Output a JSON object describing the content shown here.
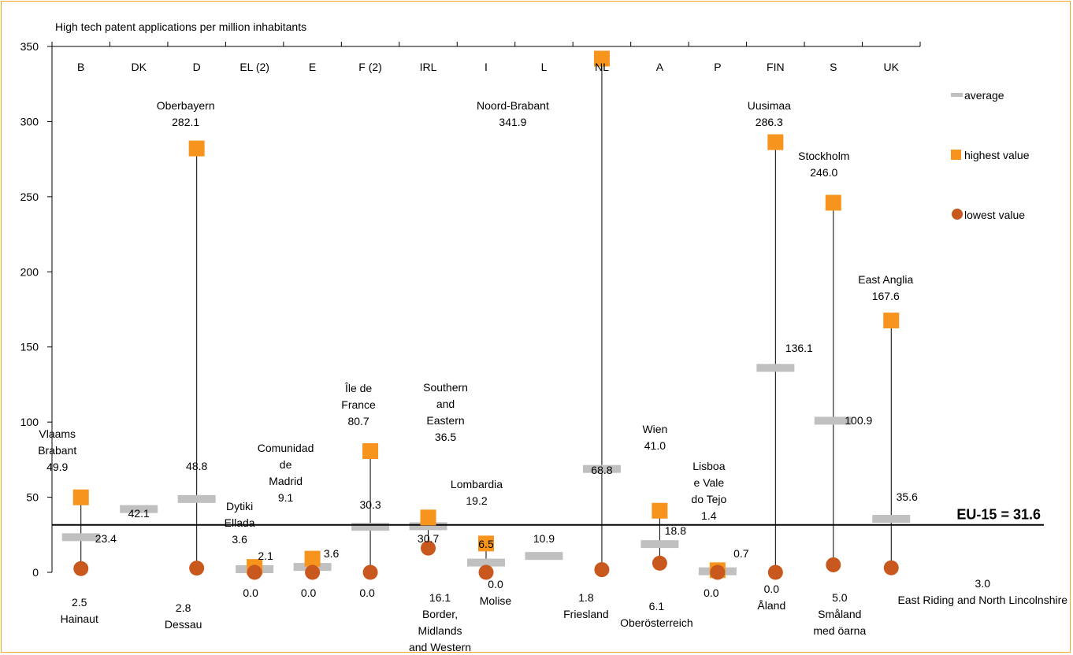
{
  "chart_data": {
    "type": "scatter",
    "title": "High tech patent applications per million inhabitants",
    "ylim": [
      0,
      350
    ],
    "y_ticks": [
      0,
      50,
      100,
      150,
      200,
      250,
      300,
      350
    ],
    "countries": [
      {
        "code": "B",
        "average": 23.4,
        "avg_label": "23.4",
        "high": 49.9,
        "high_label": "49.9",
        "high_region": [
          "Vlaams",
          "Brabant"
        ],
        "low": 2.5,
        "low_label": "2.5",
        "low_region": [
          "Hainaut"
        ]
      },
      {
        "code": "DK",
        "average": 42.1,
        "avg_label": "42.1"
      },
      {
        "code": "D",
        "average": 48.8,
        "avg_label": "48.8",
        "high": 282.1,
        "high_label": "282.1",
        "high_region": [
          "Oberbayern"
        ],
        "low": 2.8,
        "low_label": "2.8",
        "low_region": [
          "Dessau"
        ]
      },
      {
        "code": "EL (2)",
        "average": 2.1,
        "avg_label": "2.1",
        "high": 3.6,
        "high_label": "3.6",
        "high_region": [
          "Dytiki",
          "Ellada"
        ],
        "low": 0.0,
        "low_label": "0.0",
        "low_region": []
      },
      {
        "code": "E",
        "average": 3.6,
        "avg_label": "3.6",
        "high": 9.1,
        "high_label": "9.1",
        "high_region": [
          "Comunidad",
          "de",
          "Madrid"
        ],
        "low": 0.0,
        "low_label": "0.0",
        "low_region": []
      },
      {
        "code": "F (2)",
        "average": 30.3,
        "avg_label": "30.3",
        "high": 80.7,
        "high_label": "80.7",
        "high_region": [
          "Île de",
          "France"
        ],
        "low": 0.0,
        "low_label": "0.0",
        "low_region": []
      },
      {
        "code": "IRL",
        "average": 30.7,
        "avg_label": "30.7",
        "high": 36.5,
        "high_label": "36.5",
        "high_region": [
          "Southern",
          "and",
          "Eastern"
        ],
        "low": 16.1,
        "low_label": "16.1",
        "low_region": [
          "Border,",
          "Midlands",
          "and Western"
        ]
      },
      {
        "code": "I",
        "average": 6.5,
        "avg_label": "6.5",
        "high": 19.2,
        "high_label": "19.2",
        "high_region": [
          "Lombardia"
        ],
        "low": 0.0,
        "low_label": "0.0",
        "low_region": [
          "Molise"
        ]
      },
      {
        "code": "L",
        "average": 10.9,
        "avg_label": "10.9"
      },
      {
        "code": "NL",
        "average": 68.8,
        "avg_label": "68.8",
        "high": 341.9,
        "high_label": "341.9",
        "high_region": [
          "Noord-Brabant"
        ],
        "low": 1.8,
        "low_label": "1.8",
        "low_region": [
          "Friesland"
        ]
      },
      {
        "code": "A",
        "average": 18.8,
        "avg_label": "18.8",
        "high": 41.0,
        "high_label": "41.0",
        "high_region": [
          "Wien"
        ],
        "low": 6.1,
        "low_label": "6.1",
        "low_region": [
          "Oberösterreich"
        ]
      },
      {
        "code": "P",
        "average": 0.7,
        "avg_label": "0.7",
        "high": 1.4,
        "high_label": "1.4",
        "high_region": [
          "Lisboa",
          "e Vale",
          "do Tejo"
        ],
        "low": 0.0,
        "low_label": "0.0",
        "low_region": []
      },
      {
        "code": "FIN",
        "average": 136.1,
        "avg_label": "136.1",
        "high": 286.3,
        "high_label": "286.3",
        "high_region": [
          "Uusimaa"
        ],
        "low": 0.0,
        "low_label": "0.0",
        "low_region": [
          "Åland"
        ]
      },
      {
        "code": "S",
        "average": 100.9,
        "avg_label": "100.9",
        "high": 246.0,
        "high_label": "246.0",
        "high_region": [
          "Stockholm"
        ],
        "low": 5.0,
        "low_label": "5.0",
        "low_region": [
          "Småland",
          "med öarna"
        ]
      },
      {
        "code": "UK",
        "average": 35.6,
        "avg_label": "35.6",
        "high": 167.6,
        "high_label": "167.6",
        "high_region": [
          "East Anglia"
        ],
        "low": 3.0,
        "low_label": "3.0",
        "low_region": [
          "East Riding and North Lincolnshire"
        ]
      }
    ],
    "reference_line": {
      "value": 31.6,
      "label": "EU-15 = 31.6"
    },
    "legend": {
      "placement": "right",
      "items": [
        {
          "label": "average",
          "marker": "bar",
          "color": "#c0c0c0"
        },
        {
          "label": "highest value",
          "marker": "square",
          "color": "#f7941d"
        },
        {
          "label": "lowest value",
          "marker": "circle",
          "color": "#c8581e"
        }
      ]
    }
  }
}
